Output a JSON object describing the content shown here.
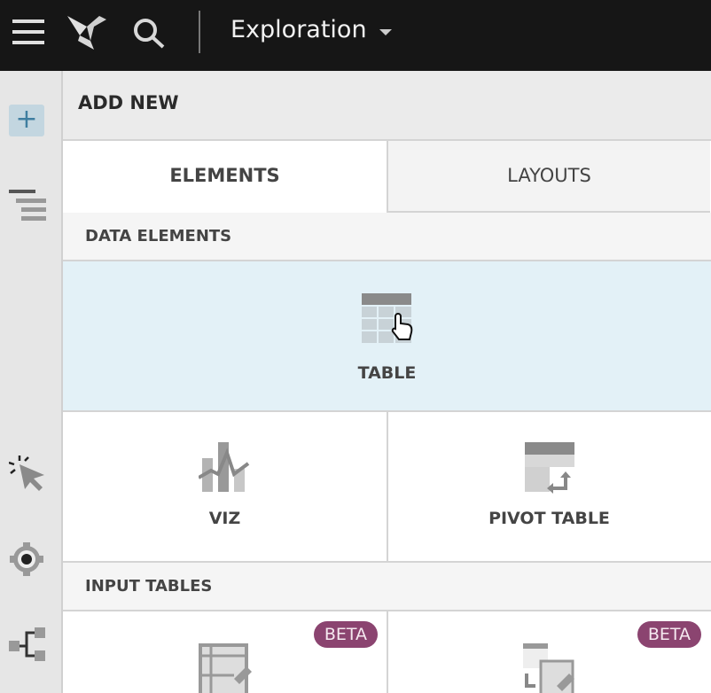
{
  "topbar": {
    "title": "Exploration",
    "icons": [
      "menu-icon",
      "logo-icon",
      "search-icon",
      "chevron-down-icon"
    ]
  },
  "sidebar": {
    "icons": [
      "plus-icon",
      "outline-icon",
      "interactions-icon",
      "settings-icon",
      "lineage-icon"
    ]
  },
  "panel": {
    "title": "ADD NEW",
    "tabs": [
      {
        "label": "ELEMENTS",
        "active": true
      },
      {
        "label": "LAYOUTS",
        "active": false
      }
    ],
    "sections": [
      {
        "title": "DATA ELEMENTS",
        "items": [
          {
            "label": "TABLE",
            "hovered": true
          },
          {
            "label": "VIZ"
          },
          {
            "label": "PIVOT TABLE"
          }
        ]
      },
      {
        "title": "INPUT TABLES",
        "items": [
          {
            "badge": "BETA"
          },
          {
            "badge": "BETA"
          }
        ]
      }
    ]
  },
  "colors": {
    "topbar": "#161616",
    "hover": "#e3f1f7",
    "beta": "#8b4470",
    "accent": "#3f7ea0"
  }
}
